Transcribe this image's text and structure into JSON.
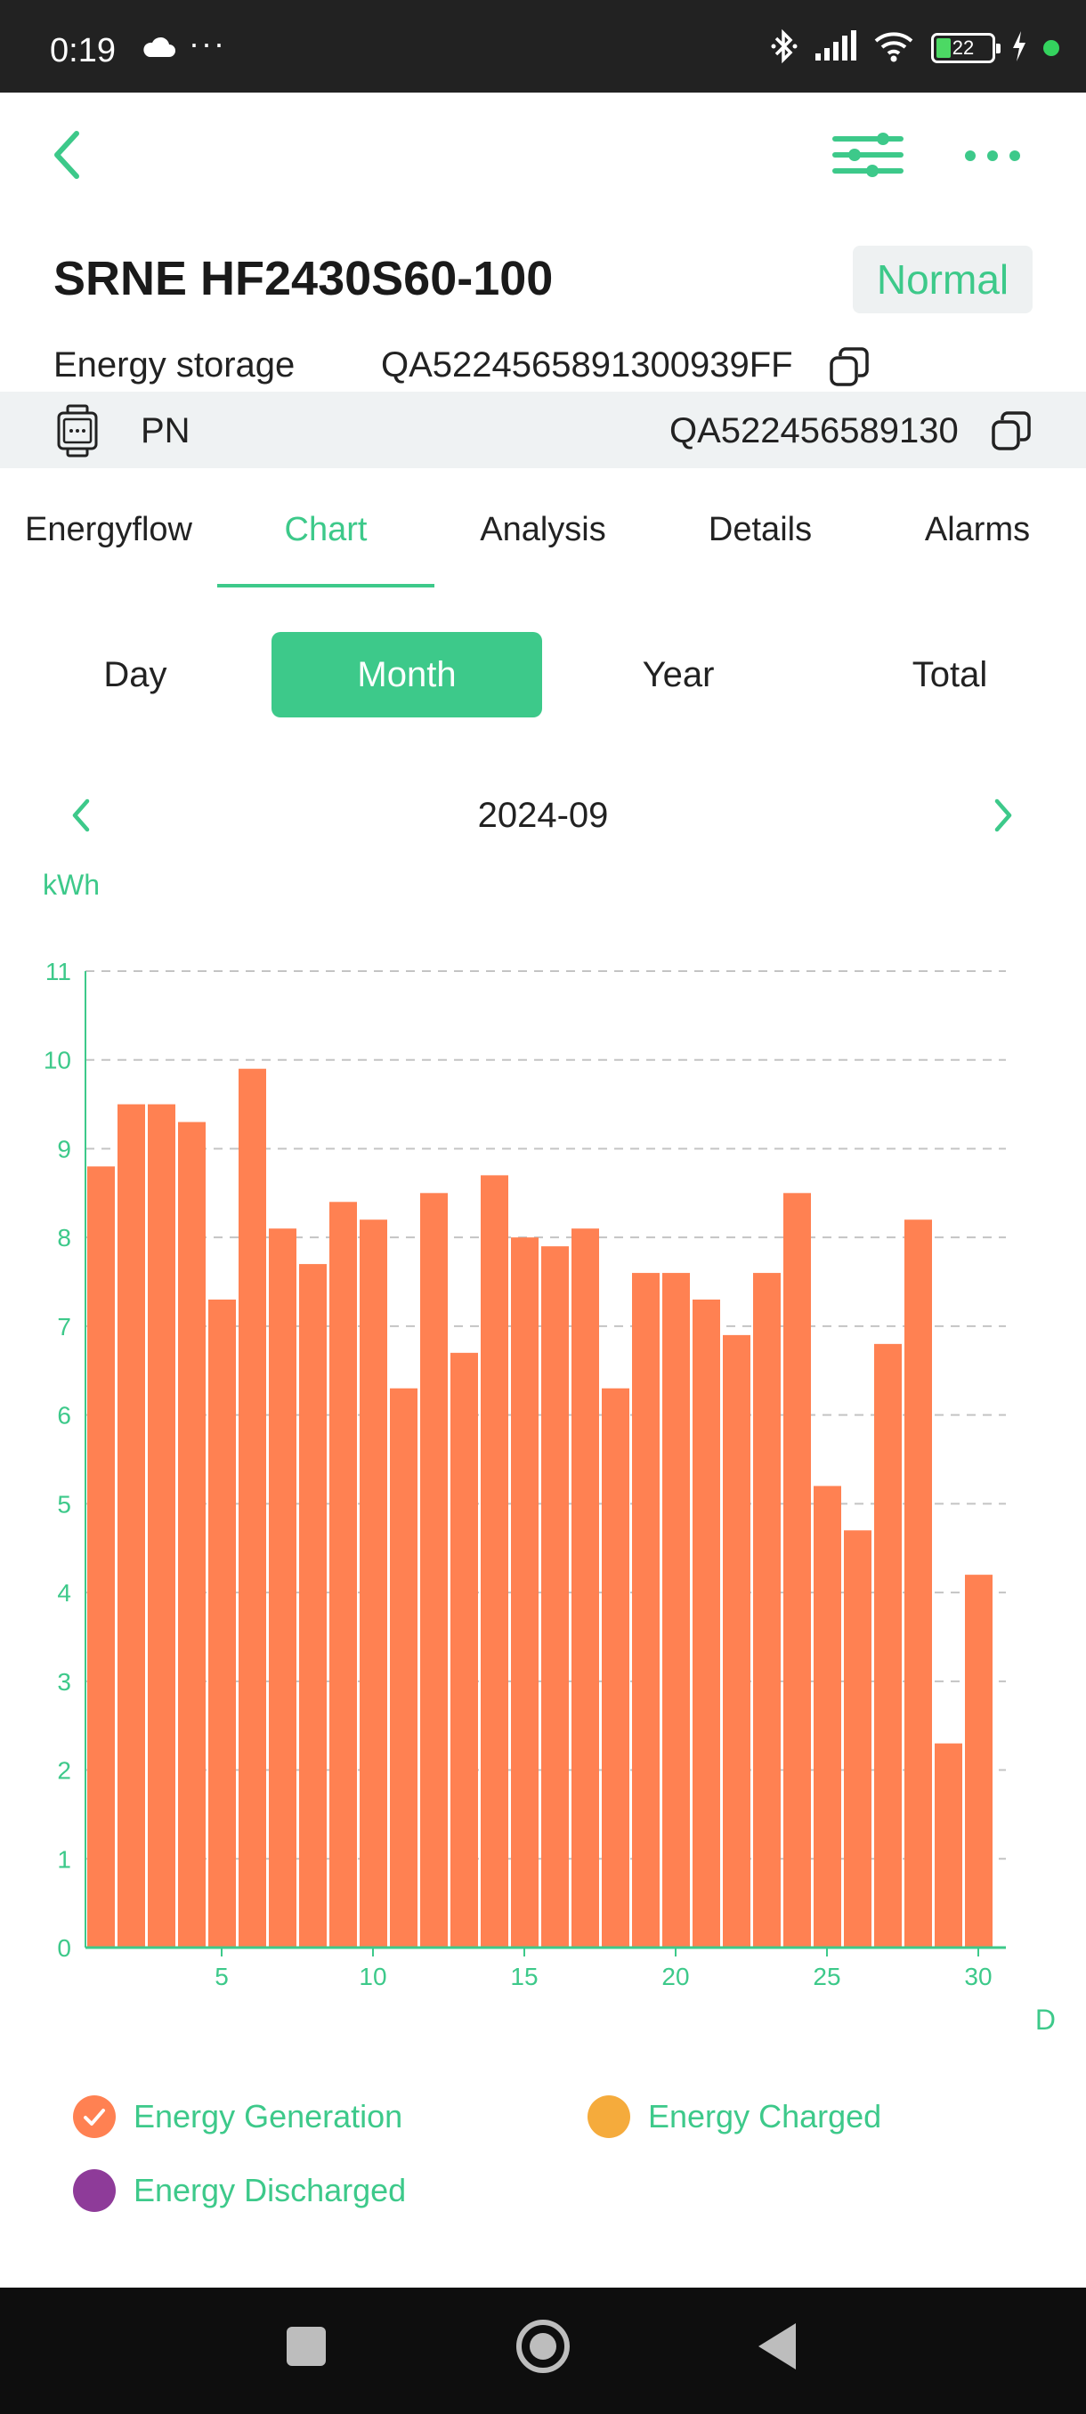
{
  "status_bar": {
    "time": "0:19",
    "dots": "···",
    "battery": "22",
    "icons": [
      "cloud-icon",
      "bluetooth-icon",
      "signal-icon",
      "wifi-icon",
      "battery-icon",
      "charging-icon"
    ]
  },
  "toolbar": {
    "icons": [
      "back-arrow-icon",
      "filter-sliders-icon",
      "more-dots-icon"
    ]
  },
  "device": {
    "title": "SRNE HF2430S60-100",
    "status": "Normal",
    "type_label": "Energy storage",
    "serial": "QA5224565891300939FF",
    "pn_label": "PN",
    "pn_value": "QA522456589130"
  },
  "tabs": [
    {
      "label": "Energyflow",
      "active": false
    },
    {
      "label": "Chart",
      "active": true
    },
    {
      "label": "Analysis",
      "active": false
    },
    {
      "label": "Details",
      "active": false
    },
    {
      "label": "Alarms",
      "active": false
    }
  ],
  "periods": [
    {
      "label": "Day",
      "active": false
    },
    {
      "label": "Month",
      "active": true
    },
    {
      "label": "Year",
      "active": false
    },
    {
      "label": "Total",
      "active": false
    }
  ],
  "date_nav": {
    "label": "2024-09"
  },
  "colors": {
    "accent": "#3dc98a",
    "bar": "#ff8152",
    "charged": "#f5ab3c",
    "discharged": "#8e3b99",
    "grid": "#c4c4c4"
  },
  "chart_data": {
    "type": "bar",
    "ylabel": "kWh",
    "xlabel": "D",
    "ylim": [
      0,
      11
    ],
    "yticks": [
      0,
      1,
      2,
      3,
      4,
      5,
      6,
      7,
      8,
      9,
      10,
      11
    ],
    "xticks": [
      5,
      10,
      15,
      20,
      25,
      30
    ],
    "grid": "dashed horizontal",
    "categories": [
      1,
      2,
      3,
      4,
      5,
      6,
      7,
      8,
      9,
      10,
      11,
      12,
      13,
      14,
      15,
      16,
      17,
      18,
      19,
      20,
      21,
      22,
      23,
      24,
      25,
      26,
      27,
      28,
      29,
      30
    ],
    "series": [
      {
        "name": "Energy Generation",
        "values": [
          8.8,
          9.5,
          9.5,
          9.3,
          7.3,
          9.9,
          8.1,
          7.7,
          8.4,
          8.2,
          6.3,
          8.5,
          6.7,
          8.7,
          8.0,
          7.9,
          8.1,
          6.3,
          7.6,
          7.6,
          7.3,
          6.9,
          7.6,
          8.5,
          5.2,
          4.7,
          6.8,
          8.2,
          2.3,
          4.2
        ]
      }
    ],
    "legend": [
      {
        "label": "Energy Generation",
        "checked": true
      },
      {
        "label": "Energy Charged",
        "checked": false
      },
      {
        "label": "Energy Discharged",
        "checked": false
      }
    ],
    "legend_position": "bottom"
  }
}
